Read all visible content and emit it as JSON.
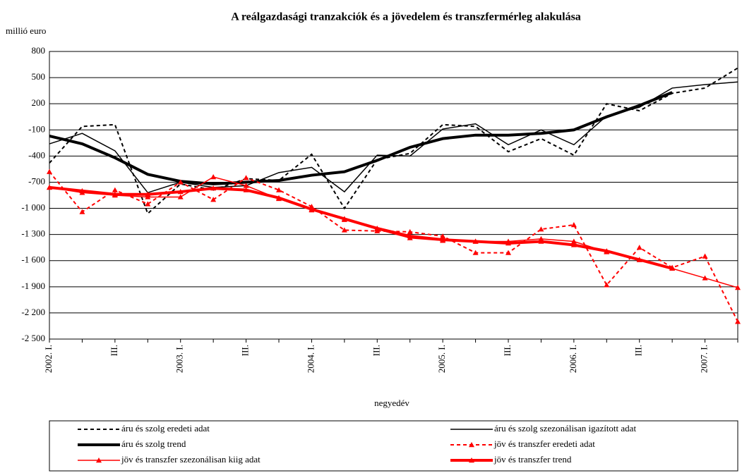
{
  "chart_data": {
    "type": "line",
    "title": "A reálgazdasági tranzakciók és a jövedelem és transzfermérleg alakulása",
    "y_label": "millió euro",
    "x_label": "negyedév",
    "categories": [
      "2002. I.",
      null,
      "III.",
      null,
      "2003. I.",
      null,
      "III.",
      null,
      "2004. I.",
      null,
      "III.",
      null,
      "2005. I.",
      null,
      "III.",
      null,
      "2006. I.",
      null,
      "III.",
      null,
      "2007. I.",
      null
    ],
    "ylim": [
      -2500,
      800
    ],
    "yticks": [
      800,
      500,
      200,
      -100,
      -400,
      -700,
      {
        "value": -1000,
        "label": "-1 000"
      },
      {
        "value": -1300,
        "label": "-1 300"
      },
      {
        "value": -1600,
        "label": "-1 600"
      },
      {
        "value": -1900,
        "label": "-1 900"
      },
      {
        "value": -2200,
        "label": "-2 200"
      },
      {
        "value": -2500,
        "label": "-2 500"
      }
    ],
    "grid": true,
    "legend": "bottom",
    "series": [
      {
        "name": "áru és szolg eredeti adat",
        "color": "#000000",
        "style": "dashed",
        "width": 2,
        "marker": "none",
        "values": [
          -480,
          -60,
          -40,
          -1060,
          -720,
          -790,
          -660,
          -680,
          -380,
          -1000,
          -440,
          -370,
          -40,
          -60,
          -350,
          -200,
          -390,
          200,
          120,
          320,
          380,
          610
        ]
      },
      {
        "name": "áru és szolg szezonálisan igazított adat",
        "color": "#000000",
        "style": "solid",
        "width": 1.5,
        "marker": "none",
        "values": [
          -260,
          -140,
          -340,
          -820,
          -700,
          -760,
          -740,
          -590,
          -530,
          -810,
          -390,
          -400,
          -90,
          -30,
          -270,
          -100,
          -270,
          60,
          160,
          380,
          420,
          450
        ]
      },
      {
        "name": "áru és szolg trend",
        "color": "#000000",
        "style": "solid",
        "width": 4,
        "marker": "none",
        "values": [
          -170,
          -260,
          -420,
          -610,
          -690,
          -720,
          -700,
          -680,
          -620,
          -580,
          -450,
          -300,
          -200,
          -160,
          -160,
          -140,
          -100,
          50,
          180,
          330,
          null,
          null
        ]
      },
      {
        "name": "jöv és transzfer eredeti adat",
        "color": "#ff0000",
        "style": "dashed",
        "width": 2,
        "marker": "triangle",
        "values": [
          -580,
          -1040,
          -790,
          -950,
          -700,
          -900,
          -650,
          -790,
          -980,
          -1250,
          -1260,
          -1270,
          -1320,
          -1510,
          -1510,
          -1240,
          -1190,
          -1880,
          -1450,
          -1680,
          -1550,
          -2300
        ]
      },
      {
        "name": "jöv és transzfer szezonálisan kiig adat",
        "color": "#ff0000",
        "style": "solid",
        "width": 1.5,
        "marker": "triangle",
        "values": [
          -760,
          -820,
          -850,
          -870,
          -870,
          -640,
          -740,
          -890,
          -1020,
          -1130,
          -1240,
          -1340,
          -1370,
          -1380,
          -1380,
          -1350,
          -1380,
          -1500,
          -1590,
          -1690,
          -1800,
          -1910
        ]
      },
      {
        "name": "jöv és transzfer trend",
        "color": "#ff0000",
        "style": "solid",
        "width": 4,
        "marker": "triangle",
        "values": [
          -760,
          -800,
          -840,
          -840,
          -810,
          -770,
          -790,
          -880,
          -1010,
          -1120,
          -1230,
          -1320,
          -1360,
          -1380,
          -1400,
          -1380,
          -1420,
          -1490,
          -1590,
          -1690,
          null,
          null
        ]
      }
    ]
  }
}
